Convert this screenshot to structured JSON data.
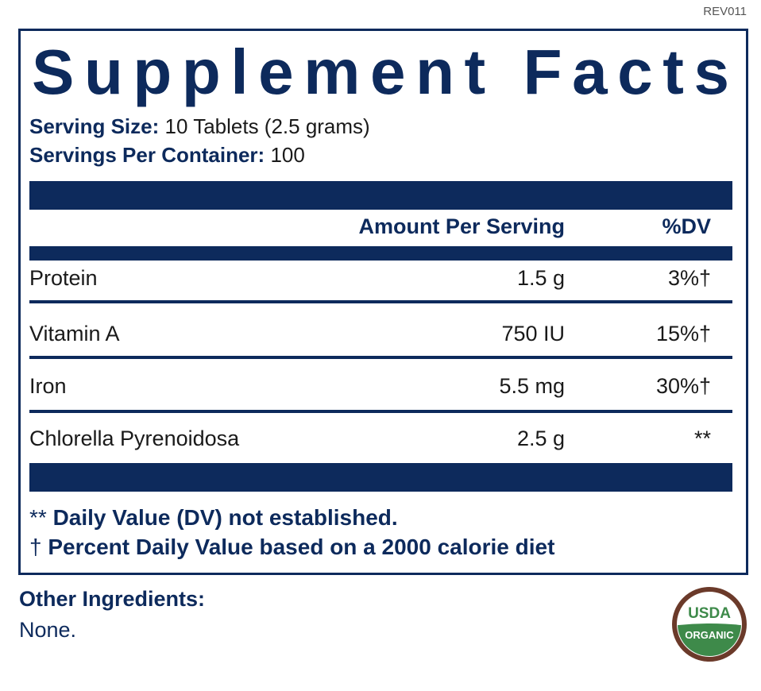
{
  "revision": "REV011",
  "title": "Supplement Facts",
  "serving_size": {
    "label": "Serving Size:",
    "value": "10 Tablets (2.5 grams)"
  },
  "servings_per_container": {
    "label": "Servings Per Container:",
    "value": "100"
  },
  "table": {
    "header": [
      "Amount Per Serving",
      "%DV"
    ],
    "rows": [
      [
        "Protein",
        "1.5 g",
        "3%†"
      ],
      [
        "Vitamin A",
        "750 IU",
        "15%†"
      ],
      [
        "Iron",
        "5.5 mg",
        "30%†"
      ],
      [
        "Chlorella Pyrenoidosa",
        "2.5 g",
        "**"
      ]
    ]
  },
  "footnotes": [
    {
      "mark": "**",
      "text": "Daily Value (DV) not established."
    },
    {
      "mark": "†",
      "text": "Percent Daily Value based on a 2000 calorie diet"
    }
  ],
  "other_ingredients": {
    "label": "Other Ingredients:",
    "value": "None."
  },
  "badge": {
    "top": "USDA",
    "bottom": "ORGANIC"
  }
}
